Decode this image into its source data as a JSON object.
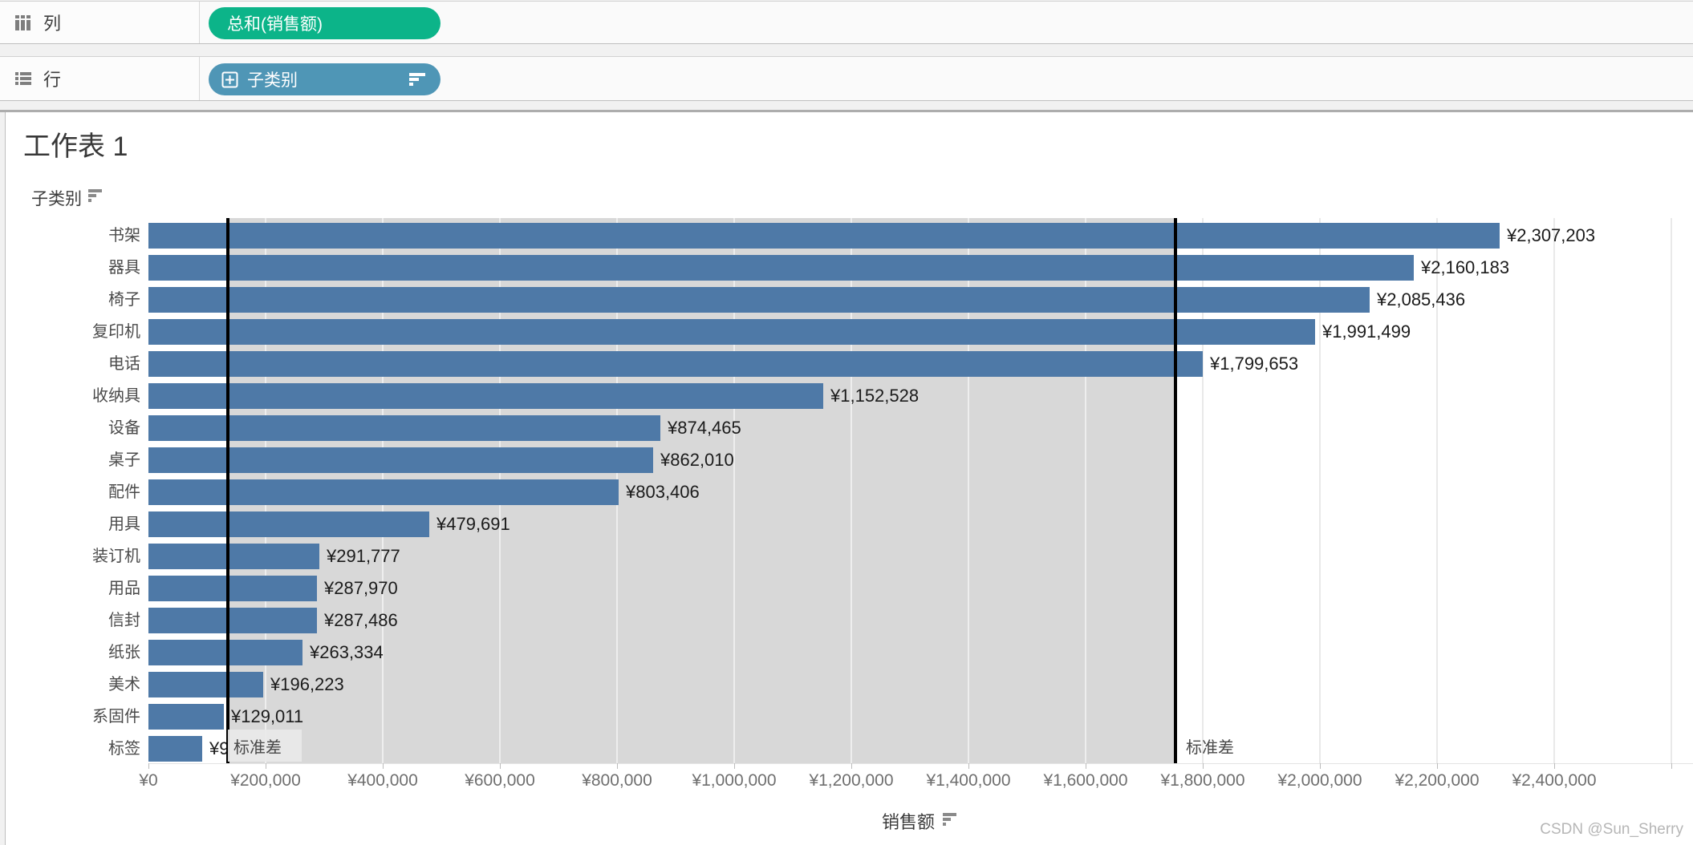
{
  "shelves": {
    "columns": {
      "label": "列",
      "pill": {
        "text": "总和(销售额)",
        "color": "#0cb489"
      }
    },
    "rows": {
      "label": "行",
      "pill": {
        "text": "子类别",
        "color": "#4f96b6"
      }
    }
  },
  "sheet": {
    "title": "工作表 1",
    "row_field_header": "子类别",
    "axis_title": "销售额",
    "watermark": "CSDN @Sun_Sherry"
  },
  "chart_data": {
    "type": "bar",
    "orientation": "horizontal",
    "title": "工作表 1",
    "xlabel": "销售额",
    "ylabel": "子类别",
    "categories": [
      "书架",
      "器具",
      "椅子",
      "复印机",
      "电话",
      "收纳具",
      "设备",
      "桌子",
      "配件",
      "用具",
      "装订机",
      "用品",
      "信封",
      "纸张",
      "美术",
      "系固件",
      "标签"
    ],
    "values": [
      2307203,
      2160183,
      2085436,
      1991499,
      1799653,
      1152528,
      874465,
      862010,
      803406,
      479691,
      291777,
      287970,
      287486,
      263334,
      196223,
      129011,
      91800
    ],
    "bar_labels": [
      "¥2,307,203",
      "¥2,160,183",
      "¥2,085,436",
      "¥1,991,499",
      "¥1,799,653",
      "¥1,152,528",
      "¥874,465",
      "¥862,010",
      "¥803,406",
      "¥479,691",
      "¥291,777",
      "¥287,970",
      "¥287,486",
      "¥263,334",
      "¥196,223",
      "¥129,011",
      "¥9"
    ],
    "last_bar_label_occluded_by": "标准差",
    "x_tick_labels": [
      "¥0",
      "¥200,000",
      "¥400,000",
      "¥600,000",
      "¥800,000",
      "¥1,000,000",
      "¥1,200,000",
      "¥1,400,000",
      "¥1,600,000",
      "¥1,800,000",
      "¥2,000,000",
      "¥2,200,000",
      "¥2,400,000"
    ],
    "x_tick_step": 200000,
    "xlim": [
      0,
      2638000
    ],
    "grid": true,
    "sort": "descending",
    "bar_color": "#4e79a7",
    "reference_band": {
      "label": "标准差",
      "from": 136000,
      "to": 1753000,
      "band_color": "#d8d8d8",
      "line_color": "#000000"
    }
  }
}
